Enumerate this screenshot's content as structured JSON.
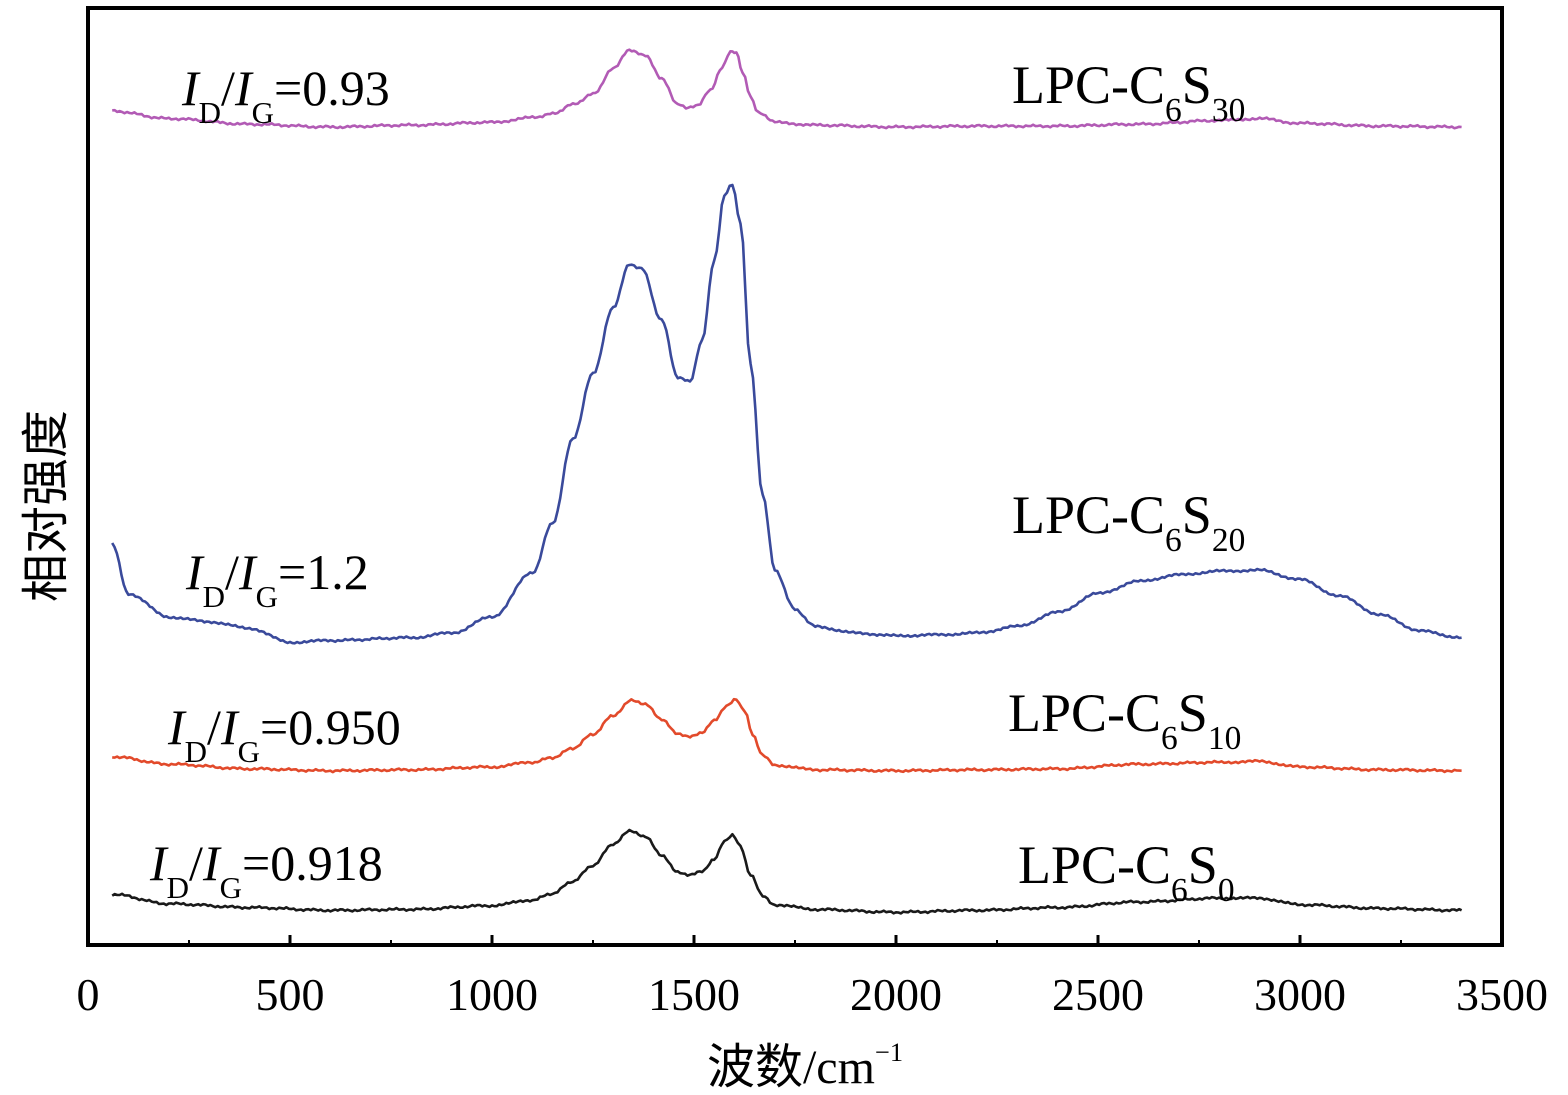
{
  "chart_data": {
    "type": "line",
    "title": "",
    "xlabel": "波数/cm",
    "xlabel_superscript": "−1",
    "ylabel": "相对强度",
    "xlim": [
      0,
      3500
    ],
    "ylim": [
      0,
      1
    ],
    "x_ticks": [
      0,
      500,
      1000,
      1500,
      2000,
      2500,
      3000,
      3500
    ],
    "x_tick_labels": [
      "0",
      "500",
      "1000",
      "1500",
      "2000",
      "2500",
      "3000",
      "3500"
    ],
    "y_tick_labels_shown": false,
    "grid": false,
    "series": [
      {
        "name": "LPC-C6S30",
        "label_parts": {
          "main": "LPC-C",
          "sub1": "6",
          "mid": "S",
          "sub2": "30"
        },
        "ratio_parts": {
          "i1": "I",
          "d": "D",
          "slash": "/",
          "i2": "I",
          "g": "G",
          "value": "=0.93"
        },
        "color": "#b25bb5",
        "x": [
          60,
          200,
          400,
          600,
          800,
          1000,
          1100,
          1150,
          1200,
          1250,
          1300,
          1340,
          1380,
          1420,
          1460,
          1480,
          1510,
          1540,
          1570,
          1590,
          1605,
          1620,
          1640,
          1660,
          1700,
          1800,
          2000,
          2200,
          2400,
          2600,
          2800,
          2900,
          3000,
          3200,
          3400
        ],
        "y": [
          0.89,
          0.882,
          0.876,
          0.873,
          0.875,
          0.878,
          0.883,
          0.887,
          0.897,
          0.908,
          0.935,
          0.955,
          0.95,
          0.925,
          0.897,
          0.894,
          0.896,
          0.912,
          0.937,
          0.953,
          0.952,
          0.932,
          0.905,
          0.888,
          0.878,
          0.875,
          0.873,
          0.874,
          0.874,
          0.876,
          0.88,
          0.882,
          0.877,
          0.874,
          0.873
        ]
      },
      {
        "name": "LPC-C6S20",
        "label_parts": {
          "main": "LPC-C",
          "sub1": "6",
          "mid": "S",
          "sub2": "20"
        },
        "ratio_parts": {
          "i1": "I",
          "d": "D",
          "slash": "/",
          "i2": "I",
          "g": "G",
          "value": "=1.2"
        },
        "color": "#3a4a9b",
        "x": [
          60,
          100,
          200,
          300,
          400,
          500,
          600,
          800,
          900,
          1000,
          1100,
          1150,
          1200,
          1250,
          1300,
          1340,
          1370,
          1420,
          1460,
          1490,
          1520,
          1550,
          1575,
          1595,
          1615,
          1640,
          1670,
          1700,
          1750,
          1800,
          1900,
          2000,
          2100,
          2200,
          2300,
          2400,
          2500,
          2600,
          2700,
          2800,
          2900,
          3000,
          3100,
          3200,
          3300,
          3400
        ],
        "y": [
          0.428,
          0.375,
          0.35,
          0.345,
          0.338,
          0.323,
          0.325,
          0.328,
          0.333,
          0.35,
          0.397,
          0.45,
          0.54,
          0.61,
          0.68,
          0.727,
          0.722,
          0.667,
          0.605,
          0.602,
          0.645,
          0.73,
          0.8,
          0.812,
          0.77,
          0.62,
          0.48,
          0.4,
          0.358,
          0.34,
          0.333,
          0.33,
          0.331,
          0.333,
          0.34,
          0.355,
          0.375,
          0.388,
          0.395,
          0.399,
          0.4,
          0.39,
          0.372,
          0.352,
          0.335,
          0.328
        ]
      },
      {
        "name": "LPC-C6S10",
        "label_parts": {
          "main": "LPC-C",
          "sub1": "6",
          "mid": "S",
          "sub2": "10"
        },
        "ratio_parts": {
          "i1": "I",
          "d": "D",
          "slash": "/",
          "i2": "I",
          "g": "G",
          "value": "=0.950"
        },
        "color": "#e24a2b",
        "x": [
          60,
          200,
          400,
          600,
          800,
          1000,
          1100,
          1150,
          1200,
          1250,
          1300,
          1345,
          1380,
          1420,
          1460,
          1490,
          1520,
          1550,
          1580,
          1605,
          1625,
          1645,
          1670,
          1700,
          1800,
          2000,
          2200,
          2400,
          2600,
          2800,
          2900,
          3000,
          3200,
          3400
        ],
        "y": [
          0.201,
          0.193,
          0.188,
          0.186,
          0.187,
          0.19,
          0.195,
          0.2,
          0.21,
          0.225,
          0.245,
          0.262,
          0.257,
          0.24,
          0.225,
          0.223,
          0.226,
          0.24,
          0.255,
          0.262,
          0.25,
          0.225,
          0.202,
          0.192,
          0.187,
          0.186,
          0.187,
          0.188,
          0.193,
          0.195,
          0.196,
          0.19,
          0.187,
          0.186
        ]
      },
      {
        "name": "LPC-C6S0",
        "label_parts": {
          "main": "LPC-C",
          "sub1": "6",
          "mid": "S",
          "sub2": "0"
        },
        "ratio_parts": {
          "i1": "I",
          "d": "D",
          "slash": "/",
          "i2": "I",
          "g": "G",
          "value": "=0.918"
        },
        "color": "#1a1a1a",
        "x": [
          60,
          200,
          400,
          600,
          800,
          1000,
          1100,
          1150,
          1200,
          1250,
          1300,
          1340,
          1380,
          1420,
          1460,
          1490,
          1520,
          1550,
          1575,
          1595,
          1615,
          1640,
          1670,
          1700,
          1800,
          2000,
          2200,
          2400,
          2600,
          2800,
          2900,
          3000,
          3200,
          3400
        ],
        "y": [
          0.054,
          0.044,
          0.04,
          0.037,
          0.038,
          0.042,
          0.048,
          0.055,
          0.068,
          0.085,
          0.108,
          0.122,
          0.115,
          0.095,
          0.078,
          0.075,
          0.078,
          0.092,
          0.11,
          0.118,
          0.105,
          0.075,
          0.052,
          0.043,
          0.038,
          0.035,
          0.037,
          0.04,
          0.046,
          0.05,
          0.05,
          0.043,
          0.039,
          0.037
        ]
      }
    ]
  }
}
